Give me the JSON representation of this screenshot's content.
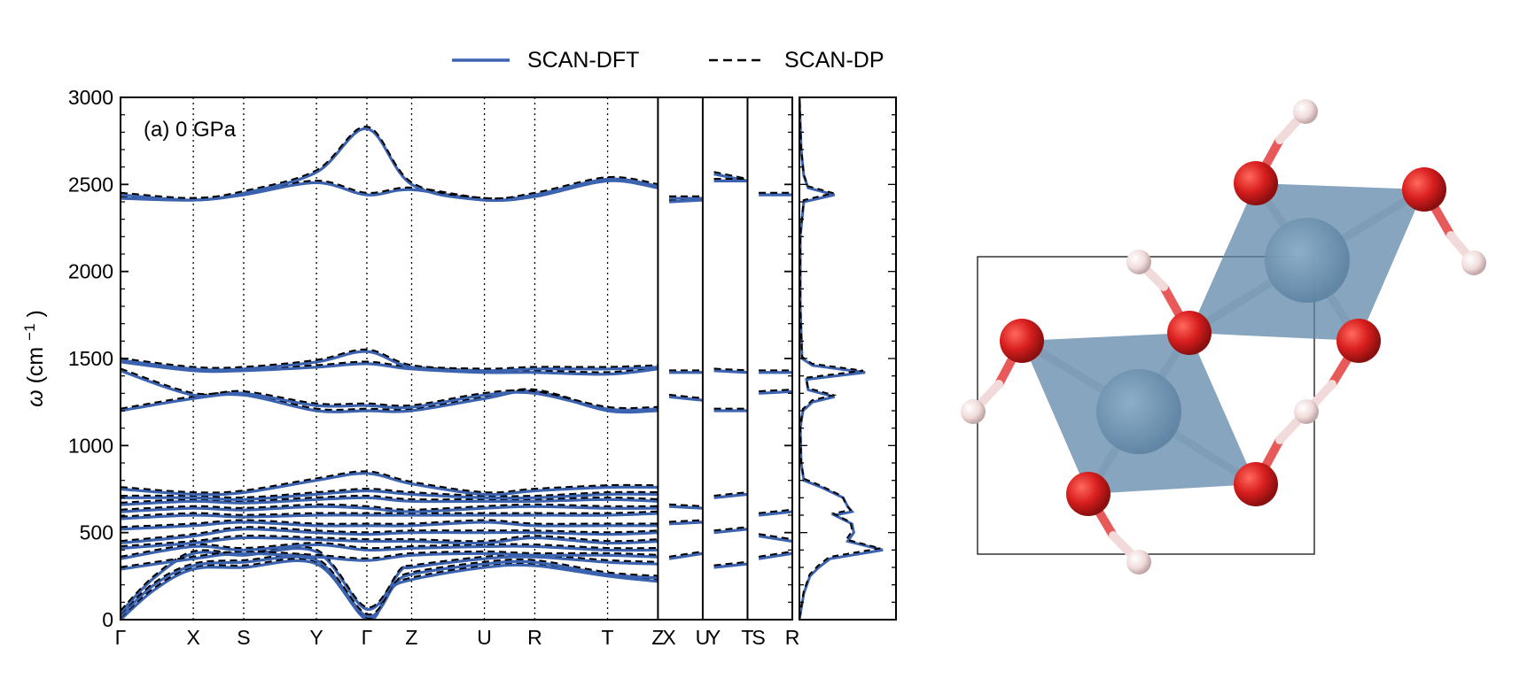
{
  "chart_data": {
    "type": "line",
    "panel_label": "(a) 0 GPa",
    "ylabel": "ω (cm⁻¹)",
    "ylabel_symbol": "ω",
    "ylabel_unit_prefix": "(cm",
    "ylabel_unit_sup": "−1",
    "ylabel_unit_suffix": ")",
    "ylim": [
      0,
      3000
    ],
    "yticks": [
      0,
      500,
      1000,
      1500,
      2000,
      2500,
      3000
    ],
    "legend_position": "top-center",
    "legend": [
      {
        "name": "SCAN-DFT",
        "style": "solid",
        "color": "#3b63b0"
      },
      {
        "name": "SCAN-DP",
        "style": "dashed",
        "color": "#000000"
      }
    ],
    "kpath_labels": [
      {
        "label": "Γ",
        "x": 0
      },
      {
        "label": "X",
        "x": 0.65
      },
      {
        "label": "S",
        "x": 1.1
      },
      {
        "label": "Y",
        "x": 1.75
      },
      {
        "label": "Γ",
        "x": 2.2
      },
      {
        "label": "Z",
        "x": 2.6
      },
      {
        "label": "U",
        "x": 3.25
      },
      {
        "label": "R",
        "x": 3.7
      },
      {
        "label": "T",
        "x": 4.35
      },
      {
        "label": "Z",
        "x": 4.8
      },
      {
        "label": "X",
        "x": 4.9
      },
      {
        "label": "U",
        "x": 5.2
      },
      {
        "label": "Y",
        "x": 5.3
      },
      {
        "label": "T",
        "x": 5.6
      },
      {
        "label": "S",
        "x": 5.7
      },
      {
        "label": "R",
        "x": 6.0
      }
    ],
    "segment_breaks": [
      4.8,
      5.2,
      5.6
    ],
    "dotted_lines": [
      0.65,
      1.1,
      1.75,
      2.2,
      2.6,
      3.25,
      3.7,
      4.35
    ],
    "xlim": [
      0,
      6.0
    ],
    "bands": [
      [
        [
          0,
          0
        ],
        [
          0.3,
          170
        ],
        [
          0.65,
          290
        ],
        [
          1.1,
          300
        ],
        [
          1.75,
          320
        ],
        [
          2.2,
          0
        ],
        [
          2.4,
          170
        ],
        [
          2.6,
          230
        ],
        [
          3.25,
          300
        ],
        [
          3.7,
          310
        ],
        [
          4.35,
          250
        ],
        [
          4.8,
          220
        ]
      ],
      [
        [
          0,
          20
        ],
        [
          0.3,
          200
        ],
        [
          0.65,
          310
        ],
        [
          1.1,
          330
        ],
        [
          1.75,
          340
        ],
        [
          2.2,
          20
        ],
        [
          2.45,
          200
        ],
        [
          2.6,
          260
        ],
        [
          3.25,
          320
        ],
        [
          3.7,
          330
        ],
        [
          4.35,
          260
        ],
        [
          4.8,
          240
        ]
      ],
      [
        [
          0,
          40
        ],
        [
          0.3,
          240
        ],
        [
          0.65,
          380
        ],
        [
          1.1,
          370
        ],
        [
          1.75,
          390
        ],
        [
          2.2,
          60
        ],
        [
          2.5,
          280
        ],
        [
          2.6,
          300
        ],
        [
          3.25,
          350
        ],
        [
          3.7,
          360
        ],
        [
          4.35,
          330
        ],
        [
          4.8,
          320
        ]
      ],
      [
        [
          0,
          290
        ],
        [
          0.65,
          350
        ],
        [
          1.1,
          380
        ],
        [
          1.75,
          360
        ],
        [
          2.2,
          340
        ],
        [
          2.6,
          370
        ],
        [
          3.25,
          380
        ],
        [
          3.7,
          370
        ],
        [
          4.35,
          370
        ],
        [
          4.8,
          360
        ]
      ],
      [
        [
          0,
          350
        ],
        [
          0.65,
          420
        ],
        [
          1.1,
          400
        ],
        [
          1.75,
          430
        ],
        [
          2.2,
          400
        ],
        [
          2.6,
          410
        ],
        [
          3.25,
          420
        ],
        [
          3.7,
          420
        ],
        [
          4.35,
          400
        ],
        [
          4.8,
          400
        ]
      ],
      [
        [
          0,
          410
        ],
        [
          0.65,
          440
        ],
        [
          1.1,
          470
        ],
        [
          1.75,
          460
        ],
        [
          2.2,
          450
        ],
        [
          2.6,
          450
        ],
        [
          3.25,
          440
        ],
        [
          3.7,
          470
        ],
        [
          4.35,
          440
        ],
        [
          4.8,
          450
        ]
      ],
      [
        [
          0,
          440
        ],
        [
          0.65,
          480
        ],
        [
          1.1,
          520
        ],
        [
          1.75,
          500
        ],
        [
          2.2,
          490
        ],
        [
          2.6,
          500
        ],
        [
          3.25,
          500
        ],
        [
          3.7,
          500
        ],
        [
          4.35,
          490
        ],
        [
          4.8,
          500
        ]
      ],
      [
        [
          0,
          520
        ],
        [
          0.65,
          540
        ],
        [
          1.1,
          560
        ],
        [
          1.75,
          540
        ],
        [
          2.2,
          540
        ],
        [
          2.6,
          540
        ],
        [
          3.25,
          560
        ],
        [
          3.7,
          540
        ],
        [
          4.35,
          540
        ],
        [
          4.8,
          540
        ]
      ],
      [
        [
          0,
          580
        ],
        [
          0.65,
          600
        ],
        [
          1.1,
          590
        ],
        [
          1.75,
          600
        ],
        [
          2.2,
          600
        ],
        [
          2.6,
          600
        ],
        [
          3.25,
          600
        ],
        [
          3.7,
          600
        ],
        [
          4.35,
          600
        ],
        [
          4.8,
          610
        ]
      ],
      [
        [
          0,
          620
        ],
        [
          0.65,
          640
        ],
        [
          1.1,
          630
        ],
        [
          1.75,
          650
        ],
        [
          2.2,
          640
        ],
        [
          2.6,
          620
        ],
        [
          3.25,
          640
        ],
        [
          3.7,
          650
        ],
        [
          4.35,
          640
        ],
        [
          4.8,
          640
        ]
      ],
      [
        [
          0,
          660
        ],
        [
          0.65,
          680
        ],
        [
          1.1,
          670
        ],
        [
          1.75,
          690
        ],
        [
          2.2,
          700
        ],
        [
          2.6,
          680
        ],
        [
          3.25,
          680
        ],
        [
          3.7,
          680
        ],
        [
          4.35,
          690
        ],
        [
          4.8,
          680
        ]
      ],
      [
        [
          0,
          700
        ],
        [
          0.65,
          700
        ],
        [
          1.1,
          690
        ],
        [
          1.75,
          720
        ],
        [
          2.2,
          740
        ],
        [
          2.6,
          720
        ],
        [
          3.25,
          700
        ],
        [
          3.7,
          700
        ],
        [
          4.35,
          720
        ],
        [
          4.8,
          720
        ]
      ],
      [
        [
          0,
          750
        ],
        [
          0.65,
          720
        ],
        [
          1.1,
          730
        ],
        [
          1.75,
          800
        ],
        [
          2.2,
          840
        ],
        [
          2.6,
          780
        ],
        [
          3.25,
          720
        ],
        [
          3.7,
          740
        ],
        [
          4.35,
          760
        ],
        [
          4.8,
          760
        ]
      ],
      [
        [
          0,
          1200
        ],
        [
          0.65,
          1270
        ],
        [
          1.1,
          1290
        ],
        [
          1.75,
          1200
        ],
        [
          2.2,
          1200
        ],
        [
          2.6,
          1200
        ],
        [
          3.25,
          1270
        ],
        [
          3.7,
          1310
        ],
        [
          4.35,
          1200
        ],
        [
          4.8,
          1200
        ]
      ],
      [
        [
          0,
          1430
        ],
        [
          0.65,
          1290
        ],
        [
          1.1,
          1300
        ],
        [
          1.75,
          1230
        ],
        [
          2.2,
          1230
        ],
        [
          2.6,
          1220
        ],
        [
          3.25,
          1290
        ],
        [
          3.7,
          1300
        ],
        [
          4.35,
          1210
        ],
        [
          4.8,
          1210
        ]
      ],
      [
        [
          0,
          1480
        ],
        [
          0.65,
          1430
        ],
        [
          1.1,
          1430
        ],
        [
          1.75,
          1450
        ],
        [
          2.2,
          1470
        ],
        [
          2.6,
          1440
        ],
        [
          3.25,
          1420
        ],
        [
          3.7,
          1420
        ],
        [
          4.35,
          1410
        ],
        [
          4.8,
          1440
        ]
      ],
      [
        [
          0,
          1490
        ],
        [
          0.65,
          1440
        ],
        [
          1.1,
          1440
        ],
        [
          1.75,
          1480
        ],
        [
          2.2,
          1540
        ],
        [
          2.6,
          1450
        ],
        [
          3.25,
          1430
        ],
        [
          3.7,
          1440
        ],
        [
          4.35,
          1440
        ],
        [
          4.8,
          1450
        ]
      ],
      [
        [
          0,
          2420
        ],
        [
          0.65,
          2410
        ],
        [
          1.1,
          2440
        ],
        [
          1.75,
          2510
        ],
        [
          2.2,
          2440
        ],
        [
          2.6,
          2470
        ],
        [
          3.25,
          2410
        ],
        [
          3.7,
          2430
        ],
        [
          4.35,
          2520
        ],
        [
          4.8,
          2480
        ]
      ],
      [
        [
          0,
          2440
        ],
        [
          0.65,
          2410
        ],
        [
          1.1,
          2450
        ],
        [
          1.75,
          2570
        ],
        [
          2.2,
          2820
        ],
        [
          2.6,
          2500
        ],
        [
          3.25,
          2410
        ],
        [
          3.7,
          2440
        ],
        [
          4.35,
          2530
        ],
        [
          4.8,
          2490
        ]
      ],
      [
        [
          4.9,
          2400
        ],
        [
          5.2,
          2410
        ]
      ],
      [
        [
          4.9,
          2420
        ],
        [
          5.2,
          2420
        ]
      ],
      [
        [
          4.9,
          1420
        ],
        [
          5.2,
          1420
        ]
      ],
      [
        [
          4.9,
          1280
        ],
        [
          5.2,
          1260
        ]
      ],
      [
        [
          5.3,
          2560
        ],
        [
          5.6,
          2520
        ]
      ],
      [
        [
          5.3,
          2520
        ],
        [
          5.6,
          2520
        ]
      ],
      [
        [
          5.3,
          1430
        ],
        [
          5.6,
          1420
        ]
      ],
      [
        [
          5.3,
          1200
        ],
        [
          5.6,
          1200
        ]
      ],
      [
        [
          5.7,
          2440
        ],
        [
          6.0,
          2440
        ]
      ],
      [
        [
          5.7,
          1420
        ],
        [
          6.0,
          1420
        ]
      ],
      [
        [
          5.7,
          1300
        ],
        [
          6.0,
          1310
        ]
      ],
      [
        [
          4.9,
          350
        ],
        [
          5.2,
          380
        ]
      ],
      [
        [
          4.9,
          650
        ],
        [
          5.2,
          640
        ]
      ],
      [
        [
          4.9,
          550
        ],
        [
          5.2,
          560
        ]
      ],
      [
        [
          5.3,
          300
        ],
        [
          5.6,
          320
        ]
      ],
      [
        [
          5.3,
          700
        ],
        [
          5.6,
          720
        ]
      ],
      [
        [
          5.3,
          500
        ],
        [
          5.6,
          520
        ]
      ],
      [
        [
          5.7,
          350
        ],
        [
          6.0,
          380
        ]
      ],
      [
        [
          5.7,
          600
        ],
        [
          6.0,
          620
        ]
      ],
      [
        [
          5.7,
          480
        ],
        [
          6.0,
          450
        ]
      ]
    ],
    "dos": [
      [
        0,
        0
      ],
      [
        150,
        0.05
      ],
      [
        250,
        0.12
      ],
      [
        300,
        0.22
      ],
      [
        350,
        0.35
      ],
      [
        400,
        0.95
      ],
      [
        450,
        0.55
      ],
      [
        500,
        0.62
      ],
      [
        550,
        0.6
      ],
      [
        600,
        0.4
      ],
      [
        620,
        0.6
      ],
      [
        650,
        0.55
      ],
      [
        700,
        0.5
      ],
      [
        760,
        0.25
      ],
      [
        800,
        0.05
      ],
      [
        900,
        0.02
      ],
      [
        1100,
        0.01
      ],
      [
        1200,
        0.04
      ],
      [
        1250,
        0.15
      ],
      [
        1280,
        0.4
      ],
      [
        1320,
        0.1
      ],
      [
        1380,
        0.08
      ],
      [
        1420,
        0.75
      ],
      [
        1460,
        0.15
      ],
      [
        1500,
        0.03
      ],
      [
        1800,
        0.01
      ],
      [
        2200,
        0.01
      ],
      [
        2400,
        0.05
      ],
      [
        2440,
        0.4
      ],
      [
        2480,
        0.1
      ],
      [
        2550,
        0.05
      ],
      [
        2700,
        0.02
      ],
      [
        3000,
        0
      ]
    ]
  }
}
